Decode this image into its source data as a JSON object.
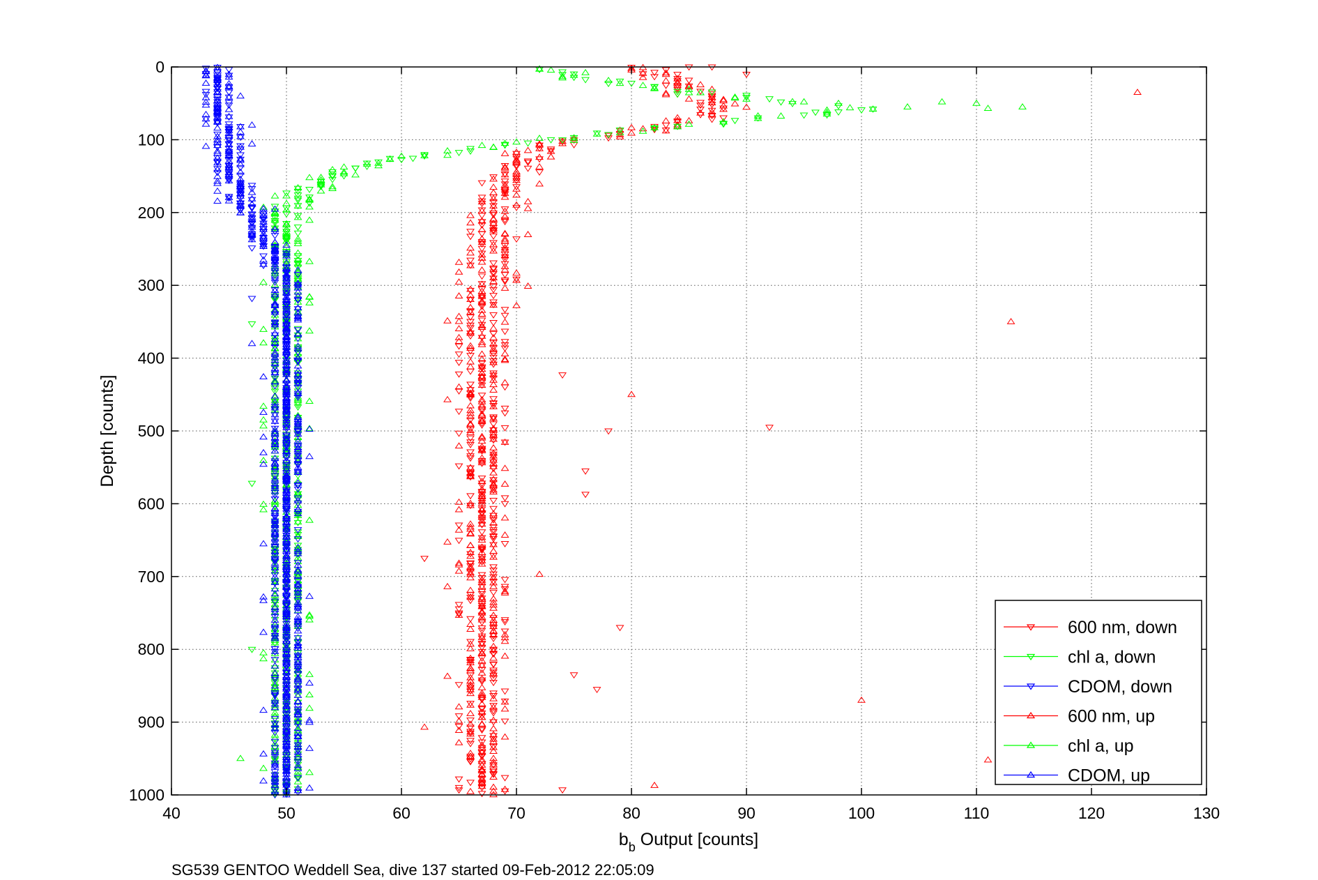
{
  "chart_data": {
    "type": "scatter",
    "title": "",
    "xlabel_main": "b",
    "xlabel_sub": "b",
    "xlabel_rest": " Output [counts]",
    "ylabel": "Depth [counts]",
    "caption": "SG539 GENTOO Weddell Sea, dive 137 started 09-Feb-2012 22:05:09",
    "xlim": [
      40,
      130
    ],
    "ylim": [
      0,
      1000
    ],
    "y_reversed": true,
    "grid": true,
    "x_ticks": [
      "40",
      "50",
      "60",
      "70",
      "80",
      "90",
      "100",
      "110",
      "120",
      "130"
    ],
    "y_ticks": [
      "0",
      "100",
      "200",
      "300",
      "400",
      "500",
      "600",
      "700",
      "800",
      "900",
      "1000"
    ],
    "legend_position": "bottom-right",
    "series": [
      {
        "name": "600 nm, down",
        "color": "#ff0000",
        "marker": "triangle-down"
      },
      {
        "name": "chl a, down",
        "color": "#00ff00",
        "marker": "triangle-down"
      },
      {
        "name": "CDOM, down",
        "color": "#0000ff",
        "marker": "triangle-down"
      },
      {
        "name": "600 nm, up",
        "color": "#ff0000",
        "marker": "triangle-up"
      },
      {
        "name": "chl a, up",
        "color": "#00ff00",
        "marker": "triangle-up"
      },
      {
        "name": "CDOM, up",
        "color": "#0000ff",
        "marker": "triangle-up"
      }
    ],
    "profiles": {
      "600nm": [
        [
          0,
          80
        ],
        [
          10,
          82
        ],
        [
          25,
          84
        ],
        [
          40,
          86
        ],
        [
          55,
          88
        ],
        [
          70,
          86
        ],
        [
          85,
          82
        ],
        [
          95,
          78
        ],
        [
          105,
          73
        ],
        [
          120,
          71
        ],
        [
          140,
          70
        ],
        [
          160,
          69
        ],
        [
          180,
          69
        ],
        [
          200,
          68.5
        ],
        [
          230,
          68
        ],
        [
          260,
          68
        ],
        [
          300,
          67.5
        ],
        [
          350,
          67
        ],
        [
          400,
          67
        ],
        [
          450,
          67
        ],
        [
          500,
          67
        ],
        [
          550,
          66.5
        ],
        [
          600,
          66.5
        ],
        [
          650,
          66.5
        ],
        [
          700,
          66.5
        ],
        [
          750,
          66.5
        ],
        [
          800,
          66.5
        ],
        [
          850,
          66.5
        ],
        [
          900,
          66.5
        ],
        [
          950,
          66.5
        ],
        [
          1000,
          66.5
        ]
      ],
      "chl": [
        [
          0,
          72
        ],
        [
          15,
          76
        ],
        [
          30,
          82
        ],
        [
          45,
          92
        ],
        [
          55,
          100
        ],
        [
          65,
          96
        ],
        [
          75,
          88
        ],
        [
          85,
          82
        ],
        [
          95,
          76
        ],
        [
          105,
          70
        ],
        [
          115,
          64
        ],
        [
          125,
          60
        ],
        [
          135,
          57
        ],
        [
          150,
          54
        ],
        [
          170,
          51.5
        ],
        [
          190,
          50.5
        ],
        [
          220,
          50
        ],
        [
          260,
          50
        ],
        [
          300,
          50
        ],
        [
          400,
          49.5
        ],
        [
          500,
          49.5
        ],
        [
          600,
          49.5
        ],
        [
          700,
          49.5
        ],
        [
          800,
          49.5
        ],
        [
          900,
          49.5
        ],
        [
          1000,
          49.5
        ]
      ],
      "cdom": [
        [
          0,
          43.5
        ],
        [
          40,
          44
        ],
        [
          80,
          44.5
        ],
        [
          120,
          45
        ],
        [
          160,
          45.5
        ],
        [
          190,
          46.5
        ],
        [
          220,
          47.5
        ],
        [
          250,
          48.5
        ],
        [
          280,
          49.5
        ],
        [
          320,
          50
        ],
        [
          400,
          50
        ],
        [
          500,
          50
        ],
        [
          600,
          50
        ],
        [
          700,
          50
        ],
        [
          800,
          50
        ],
        [
          900,
          50
        ],
        [
          1000,
          50
        ]
      ]
    },
    "outliers": [
      {
        "series": "600 nm, up",
        "x": 124,
        "y": 35
      },
      {
        "series": "600 nm, up",
        "x": 113,
        "y": 350
      },
      {
        "series": "600 nm, down",
        "x": 92,
        "y": 495
      },
      {
        "series": "600 nm, down",
        "x": 78,
        "y": 500
      },
      {
        "series": "600 nm, up",
        "x": 80,
        "y": 450
      },
      {
        "series": "600 nm, down",
        "x": 74,
        "y": 423
      },
      {
        "series": "600 nm, down",
        "x": 76,
        "y": 555
      },
      {
        "series": "600 nm, down",
        "x": 76,
        "y": 587
      },
      {
        "series": "600 nm, up",
        "x": 72,
        "y": 697
      },
      {
        "series": "600 nm, down",
        "x": 79,
        "y": 770
      },
      {
        "series": "600 nm, down",
        "x": 75,
        "y": 835
      },
      {
        "series": "600 nm, down",
        "x": 77,
        "y": 855
      },
      {
        "series": "600 nm, up",
        "x": 100,
        "y": 870
      },
      {
        "series": "600 nm, up",
        "x": 111,
        "y": 952
      },
      {
        "series": "600 nm, up",
        "x": 82,
        "y": 987
      },
      {
        "series": "600 nm, down",
        "x": 74,
        "y": 993
      },
      {
        "series": "600 nm, down",
        "x": 62,
        "y": 675
      },
      {
        "series": "600 nm, up",
        "x": 62,
        "y": 907
      },
      {
        "series": "600 nm, down",
        "x": 87,
        "y": 0
      },
      {
        "series": "600 nm, down",
        "x": 85,
        "y": 0
      },
      {
        "series": "600 nm, down",
        "x": 90,
        "y": 10
      },
      {
        "series": "chl a, up",
        "x": 114,
        "y": 55
      },
      {
        "series": "chl a, up",
        "x": 111,
        "y": 57
      },
      {
        "series": "chl a, up",
        "x": 110,
        "y": 50
      },
      {
        "series": "chl a, up",
        "x": 107,
        "y": 48
      },
      {
        "series": "chl a, up",
        "x": 104,
        "y": 55
      },
      {
        "series": "chl a, down",
        "x": 47,
        "y": 353
      },
      {
        "series": "chl a, down",
        "x": 47,
        "y": 572
      },
      {
        "series": "chl a, down",
        "x": 47,
        "y": 800
      },
      {
        "series": "chl a, up",
        "x": 46,
        "y": 950
      },
      {
        "series": "CDOM, up",
        "x": 47,
        "y": 380
      },
      {
        "series": "CDOM, down",
        "x": 47,
        "y": 318
      }
    ]
  }
}
